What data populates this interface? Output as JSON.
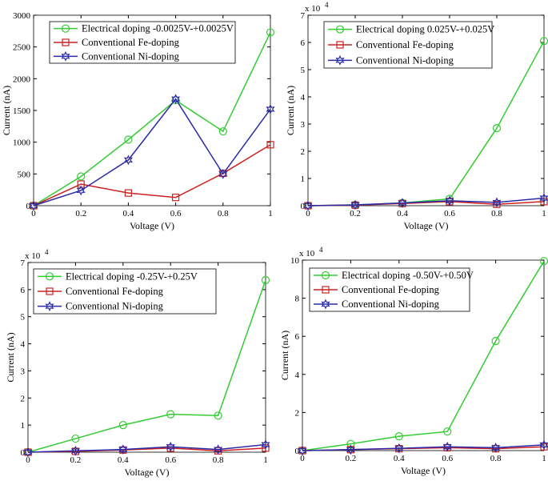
{
  "chart_data": [
    {
      "type": "line",
      "x": [
        0,
        0.2,
        0.4,
        0.6,
        0.8,
        1
      ],
      "xlim": [
        0,
        1
      ],
      "xticks": [
        0,
        0.2,
        0.4,
        0.6,
        0.8,
        1
      ],
      "ylim": [
        0,
        3000
      ],
      "yticks": [
        0,
        500,
        1000,
        1500,
        2000,
        2500,
        3000
      ],
      "x_label": "Voltage (V)",
      "y_label": "Current (nA)",
      "grid": false,
      "series": [
        {
          "name": "Electrical doping -0.0025V-+0.0025V",
          "color": "#33cc33",
          "marker": "circle",
          "values": [
            0,
            460,
            1040,
            1660,
            1170,
            2730
          ]
        },
        {
          "name": "Conventional Fe-doping",
          "color": "#cc2222",
          "marker": "square",
          "values": [
            0,
            340,
            200,
            130,
            510,
            960
          ]
        },
        {
          "name": "Conventional Ni-doping",
          "color": "#2a2aa8",
          "marker": "star",
          "values": [
            0,
            240,
            720,
            1680,
            500,
            1520
          ]
        }
      ]
    },
    {
      "type": "line",
      "x": [
        0,
        0.2,
        0.4,
        0.6,
        0.8,
        1
      ],
      "xlim": [
        0,
        1
      ],
      "xticks": [
        0,
        0.2,
        0.4,
        0.6,
        0.8,
        1
      ],
      "ylim": [
        0,
        7
      ],
      "yticks": [
        0,
        1,
        2,
        3,
        4,
        5,
        6,
        7
      ],
      "y_multiplier": "x 10",
      "y_multiplier_exp": "4",
      "x_label": "Voltage (V)",
      "y_label": "Current (nA)",
      "grid": false,
      "series": [
        {
          "name": "Electrical doping 0.025V-+0.025V",
          "color": "#33cc33",
          "marker": "circle",
          "values": [
            0,
            0.03,
            0.1,
            0.25,
            2.85,
            6.05
          ]
        },
        {
          "name": "Conventional Fe-doping",
          "color": "#cc2222",
          "marker": "square",
          "values": [
            0,
            0.02,
            0.08,
            0.15,
            0.05,
            0.15
          ]
        },
        {
          "name": "Conventional Ni-doping",
          "color": "#2a2aa8",
          "marker": "star",
          "values": [
            0,
            0.03,
            0.1,
            0.18,
            0.12,
            0.28
          ]
        }
      ]
    },
    {
      "type": "line",
      "x": [
        0,
        0.2,
        0.4,
        0.6,
        0.8,
        1
      ],
      "xlim": [
        0,
        1
      ],
      "xticks": [
        0,
        0.2,
        0.4,
        0.6,
        0.8,
        1
      ],
      "ylim": [
        0,
        7
      ],
      "yticks": [
        0,
        1,
        2,
        3,
        4,
        5,
        6,
        7
      ],
      "y_multiplier": "x 10",
      "y_multiplier_exp": "4",
      "x_label": "Voltage (V)",
      "y_label": "Current (nA)",
      "grid": false,
      "series": [
        {
          "name": "Electrical doping -0.25V-+0.25V",
          "color": "#33cc33",
          "marker": "circle",
          "values": [
            0,
            0.5,
            1.0,
            1.4,
            1.35,
            6.35
          ]
        },
        {
          "name": "Conventional Fe-doping",
          "color": "#cc2222",
          "marker": "square",
          "values": [
            0,
            0.03,
            0.08,
            0.15,
            0.05,
            0.15
          ]
        },
        {
          "name": "Conventional Ni-doping",
          "color": "#2a2aa8",
          "marker": "star",
          "values": [
            0,
            0.05,
            0.1,
            0.2,
            0.1,
            0.28
          ]
        }
      ]
    },
    {
      "type": "line",
      "x": [
        0,
        0.2,
        0.4,
        0.6,
        0.8,
        1
      ],
      "xlim": [
        0,
        1
      ],
      "xticks": [
        0,
        0.2,
        0.4,
        0.6,
        0.8,
        1
      ],
      "ylim": [
        0,
        10
      ],
      "yticks": [
        0,
        2,
        4,
        6,
        8,
        10
      ],
      "y_multiplier": "x 10",
      "y_multiplier_exp": "4",
      "x_label": "Voltage (V)",
      "y_label": "Current (nA)",
      "grid": false,
      "series": [
        {
          "name": "Electrical doping -0.50V-+0.50V",
          "color": "#33cc33",
          "marker": "circle",
          "values": [
            0,
            0.35,
            0.75,
            1.0,
            5.75,
            9.95
          ]
        },
        {
          "name": "Conventional Fe-doping",
          "color": "#cc2222",
          "marker": "square",
          "values": [
            0,
            0.05,
            0.1,
            0.15,
            0.1,
            0.2
          ]
        },
        {
          "name": "Conventional Ni-doping",
          "color": "#2a2aa8",
          "marker": "star",
          "values": [
            0,
            0.05,
            0.12,
            0.2,
            0.15,
            0.3
          ]
        }
      ]
    }
  ]
}
